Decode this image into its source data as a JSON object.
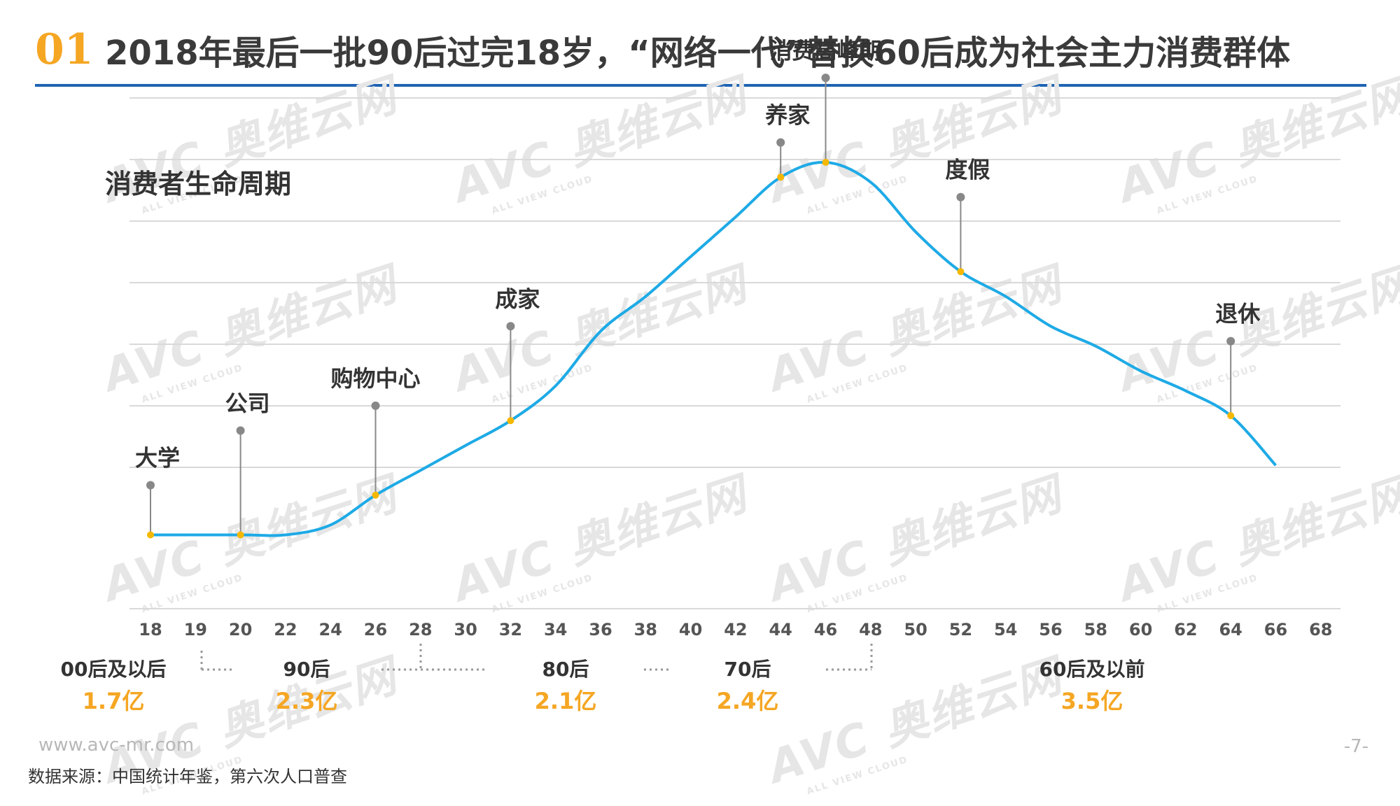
{
  "header": {
    "number": "01",
    "title": "2018年最后一批90后过完18岁，“网络一代”替换60后成为社会主力消费群体"
  },
  "watermark": {
    "logo": "AVC",
    "cn": "奥维云网",
    "en": "ALL VIEW CLOUD"
  },
  "subtitle": "消费者生命周期",
  "chart_data": {
    "type": "line",
    "title": "消费者生命周期",
    "x_ticks": [
      "18",
      "19",
      "20",
      "22",
      "24",
      "26",
      "28",
      "30",
      "32",
      "34",
      "36",
      "38",
      "40",
      "42",
      "44",
      "46",
      "48",
      "50",
      "52",
      "54",
      "56",
      "58",
      "60",
      "62",
      "64",
      "66",
      "68"
    ],
    "curve": [
      {
        "x": "18",
        "y": 0.5
      },
      {
        "x": "20",
        "y": 0.5
      },
      {
        "x": "22",
        "y": 0.5
      },
      {
        "x": "24",
        "y": 0.7
      },
      {
        "x": "26",
        "y": 1.3
      },
      {
        "x": "28",
        "y": 1.8
      },
      {
        "x": "30",
        "y": 2.3
      },
      {
        "x": "32",
        "y": 2.8
      },
      {
        "x": "34",
        "y": 3.5
      },
      {
        "x": "36",
        "y": 4.6
      },
      {
        "x": "38",
        "y": 5.3
      },
      {
        "x": "40",
        "y": 6.1
      },
      {
        "x": "42",
        "y": 6.9
      },
      {
        "x": "44",
        "y": 7.7
      },
      {
        "x": "46",
        "y": 8.0
      },
      {
        "x": "48",
        "y": 7.6
      },
      {
        "x": "50",
        "y": 6.6
      },
      {
        "x": "52",
        "y": 5.8
      },
      {
        "x": "54",
        "y": 5.3
      },
      {
        "x": "56",
        "y": 4.7
      },
      {
        "x": "58",
        "y": 4.3
      },
      {
        "x": "60",
        "y": 3.8
      },
      {
        "x": "62",
        "y": 3.4
      },
      {
        "x": "64",
        "y": 2.9
      },
      {
        "x": "66",
        "y": 1.9
      }
    ],
    "annotations": [
      {
        "x": "18",
        "y": 0.5,
        "label": "大学",
        "stem": 1.0
      },
      {
        "x": "20",
        "y": 0.5,
        "label": "公司",
        "stem": 2.1
      },
      {
        "x": "26",
        "y": 1.3,
        "label": "购物中心",
        "stem": 1.8
      },
      {
        "x": "32",
        "y": 2.8,
        "label": "成家",
        "stem": 1.9
      },
      {
        "x": "44",
        "y": 7.7,
        "label": "养家",
        "stem": 0.7
      },
      {
        "x": "46",
        "y": 8.0,
        "label": "消费高峰期",
        "stem": 1.7
      },
      {
        "x": "52",
        "y": 5.8,
        "label": "度假",
        "stem": 1.5
      },
      {
        "x": "64",
        "y": 2.9,
        "label": "退休",
        "stem": 1.5
      }
    ],
    "ylim": [
      0,
      10
    ],
    "grid": true,
    "colors": {
      "line": "#1eaae6",
      "marker": "#f5b800",
      "stem": "#888888",
      "grid": "#d9d9d9"
    },
    "generations": [
      {
        "name": "00后及以后",
        "value": "1.7亿"
      },
      {
        "name": "90后",
        "value": "2.3亿"
      },
      {
        "name": "80后",
        "value": "2.1亿"
      },
      {
        "name": "70后",
        "value": "2.4亿"
      },
      {
        "name": "60后及以前",
        "value": "3.5亿"
      }
    ]
  },
  "footer": {
    "url": "www.avc-mr.com",
    "source": "数据来源：中国统计年鉴，第六次人口普查",
    "page": "-7-"
  }
}
